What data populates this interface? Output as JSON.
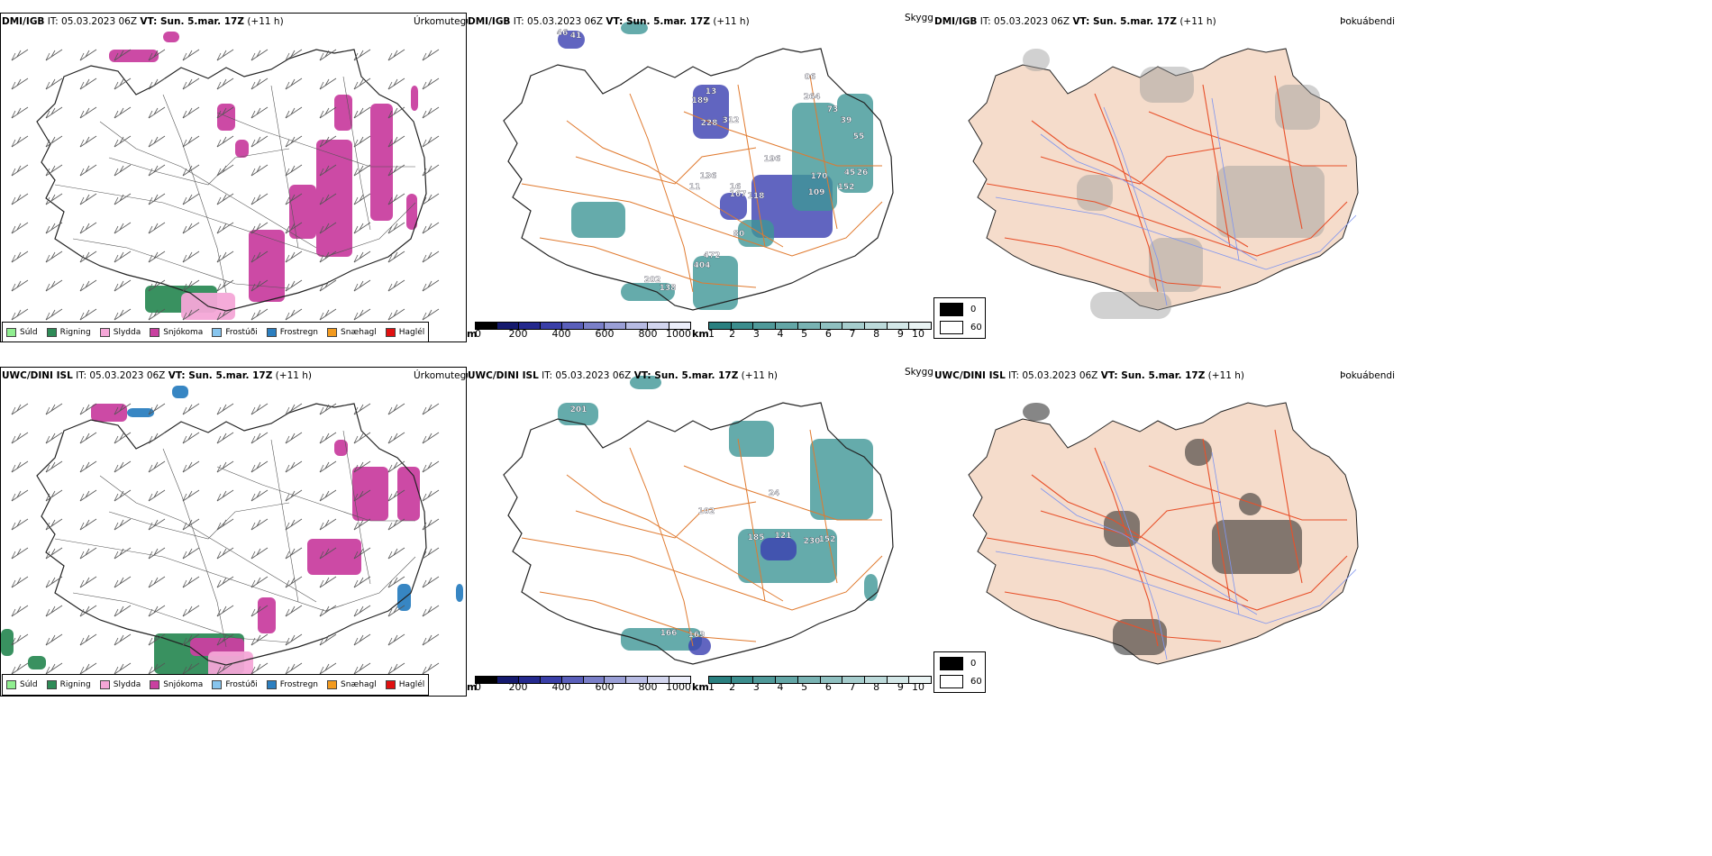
{
  "rows": [
    {
      "model": "DMI/IGB",
      "it_prefix": "IT: 05.03.2023 06Z",
      "vt_prefix": "VT: Sun. 5.mar. 17Z",
      "lead": "(+11 h)",
      "vis_values": [
        "46",
        "41",
        "189",
        "13",
        "228",
        "312",
        "06",
        "264",
        "73",
        "39",
        "55",
        "196",
        "170",
        "45",
        "152",
        "26",
        "136",
        "11",
        "16",
        "167",
        "118",
        "109",
        "80",
        "472",
        "404",
        "202",
        "138"
      ]
    },
    {
      "model": "UWC/DINI ISL",
      "it_prefix": "IT: 05.03.2023 06Z",
      "vt_prefix": "VT: Sun. 5.mar. 17Z",
      "lead": "(+11 h)",
      "vis_values": [
        "201",
        "24",
        "102",
        "185",
        "121",
        "230",
        "152",
        "166",
        "169"
      ]
    }
  ],
  "panels": {
    "precip_title": "Úrkomutegund",
    "vis_title": "Skyggni",
    "fog_title": "Þokuábendi"
  },
  "precip_legend": [
    {
      "label": "Súld",
      "color": "#90ee90"
    },
    {
      "label": "Rigning",
      "color": "#2e8b57"
    },
    {
      "label": "Slydda",
      "color": "#f4a6d7"
    },
    {
      "label": "Snjókoma",
      "color": "#c940a0"
    },
    {
      "label": "Frostúði",
      "color": "#87c5ee"
    },
    {
      "label": "Frostregn",
      "color": "#2c7fc0"
    },
    {
      "label": "Snæhagl",
      "color": "#f29a1f"
    },
    {
      "label": "Haglél",
      "color": "#e01010"
    }
  ],
  "vis_scale_m": {
    "unit": "m",
    "ticks": [
      "0",
      "200",
      "400",
      "600",
      "800",
      "1000"
    ],
    "colors": [
      "#000000",
      "#151a6e",
      "#24298e",
      "#3a3fa8",
      "#5a5fba",
      "#7a7fc8",
      "#9a9fd6",
      "#b7bbe3",
      "#d2d5ee",
      "#eceefa"
    ]
  },
  "vis_scale_km": {
    "unit": "km",
    "ticks": [
      "1",
      "2",
      "3",
      "4",
      "5",
      "6",
      "7",
      "8",
      "9",
      "10"
    ],
    "colors": [
      "#2a8080",
      "#3b8d8d",
      "#4f9999",
      "#63a6a6",
      "#79b3b3",
      "#8fc0c0",
      "#a6cdcd",
      "#bcdada",
      "#d3e7e7",
      "#e9f3f3"
    ]
  },
  "fog_legend": {
    "entries": [
      {
        "label": "0",
        "color": "#000000"
      },
      {
        "label": "60",
        "color": "#ffffff"
      }
    ]
  },
  "colors": {
    "snow": "#c940a0",
    "rain": "#2e8b57",
    "sleet": "#f4a6d7",
    "freezing_rain": "#2c7fc0",
    "vis_low": "#3a3fb0",
    "vis_mid": "#3f9696",
    "road": "#e07a2f",
    "land_fog": "#f5dccb",
    "fog_road": "#e8502a",
    "river": "#7f95f0"
  }
}
